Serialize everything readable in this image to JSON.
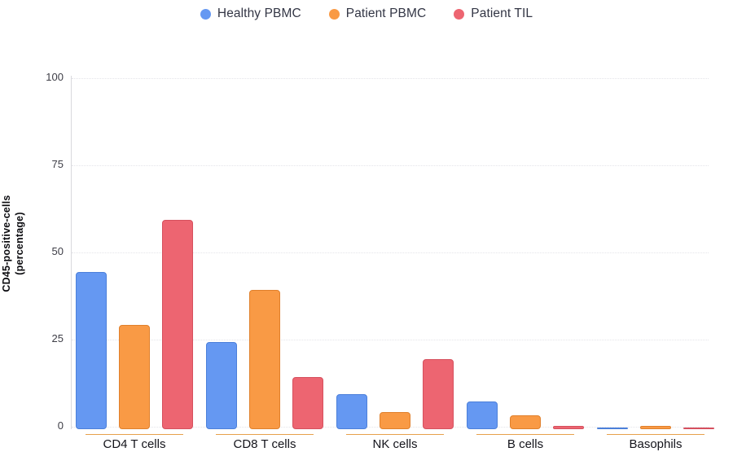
{
  "chart_data": {
    "type": "bar",
    "title": "",
    "categories": [
      "CD4 T cells",
      "CD8 T cells",
      "NK cells",
      "B cells",
      "Basophils"
    ],
    "series": [
      {
        "name": "Healthy PBMC",
        "color": "#6598F2",
        "border_color": "#4C80DA",
        "values": [
          45,
          25,
          10,
          8,
          0.5
        ]
      },
      {
        "name": "Patient PBMC",
        "color": "#F99A45",
        "border_color": "#E0802C",
        "values": [
          30,
          40,
          5,
          4,
          1
        ]
      },
      {
        "name": "Patient TIL",
        "color": "#ED6571",
        "border_color": "#D6505E",
        "values": [
          60,
          15,
          20,
          1,
          0.3
        ]
      }
    ],
    "ylabel_line1": "CD45-positive-cells",
    "ylabel_line2": "(percentage)",
    "yticks": [
      0,
      25,
      50,
      75,
      100
    ],
    "ylim": [
      0,
      100
    ],
    "grid": "horizontal-dotted",
    "legend_position": "top-center",
    "colors": {
      "grid": "#e4e4e9",
      "y_axis_line": "#d9d9de",
      "category_underline": "#e7a14b",
      "tick_text": "#3d3d46",
      "legend_text": "#333645"
    }
  }
}
